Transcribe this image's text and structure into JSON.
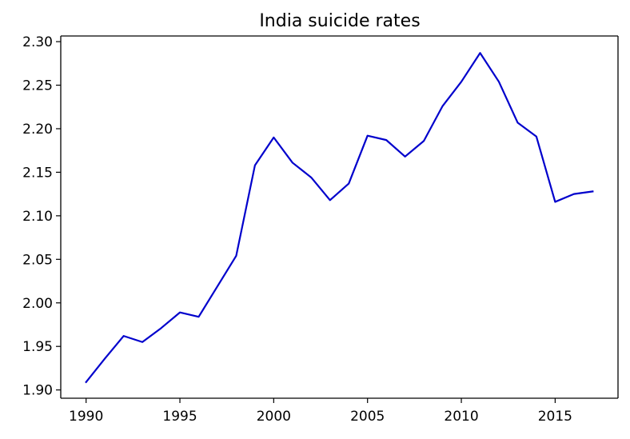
{
  "chart_data": {
    "type": "line",
    "title": "India suicide rates",
    "xlabel": "",
    "ylabel": "",
    "xlim": [
      1988.65,
      2018.35
    ],
    "ylim": [
      1.8905,
      2.3065
    ],
    "xticks": [
      1990,
      1995,
      2000,
      2005,
      2010,
      2015
    ],
    "yticks": [
      1.9,
      1.95,
      2.0,
      2.05,
      2.1,
      2.15,
      2.2,
      2.25,
      2.3
    ],
    "grid": false,
    "legend": "none",
    "series": [
      {
        "color": "#0000cc",
        "x": [
          1990,
          1991,
          1992,
          1993,
          1994,
          1995,
          1996,
          1997,
          1998,
          1999,
          2000,
          2001,
          2002,
          2003,
          2004,
          2005,
          2006,
          2007,
          2008,
          2009,
          2010,
          2011,
          2012,
          2013,
          2014,
          2015,
          2016,
          2017
        ],
        "y": [
          1.909,
          1.936,
          1.962,
          1.955,
          1.971,
          1.989,
          1.984,
          2.019,
          2.054,
          2.158,
          2.19,
          2.161,
          2.144,
          2.118,
          2.137,
          2.192,
          2.187,
          2.168,
          2.186,
          2.226,
          2.254,
          2.287,
          2.254,
          2.207,
          2.191,
          2.116,
          2.125,
          2.128
        ]
      }
    ]
  }
}
